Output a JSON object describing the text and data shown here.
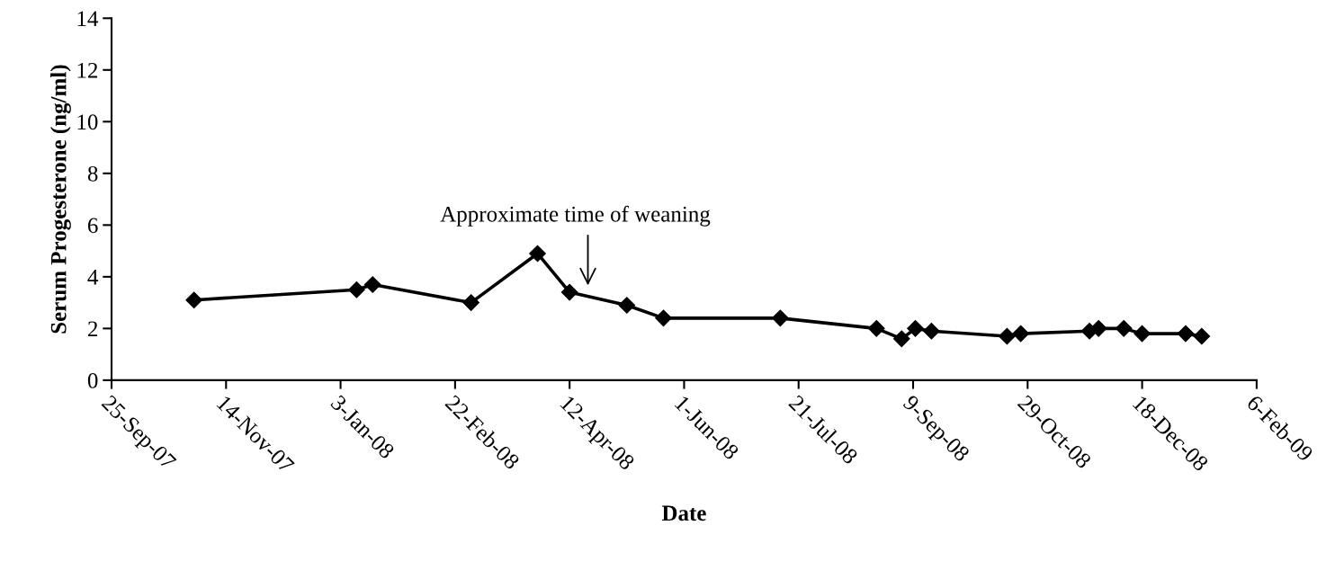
{
  "chart_data": {
    "type": "line",
    "xlabel": "Date",
    "ylabel": "Serum Progesterone (ng/ml)",
    "x": [
      "2007-10-31",
      "2008-01-10",
      "2008-01-17",
      "2008-02-29",
      "2008-03-29",
      "2008-04-12",
      "2008-05-07",
      "2008-05-23",
      "2008-07-13",
      "2008-08-24",
      "2008-09-04",
      "2008-09-10",
      "2008-09-17",
      "2008-10-20",
      "2008-10-26",
      "2008-11-25",
      "2008-11-29",
      "2008-12-10",
      "2008-12-18",
      "2009-01-06",
      "2009-01-13"
    ],
    "series": [
      {
        "color": "#000000",
        "values": [
          3.1,
          3.5,
          3.7,
          3.0,
          4.9,
          3.4,
          2.9,
          2.4,
          2.4,
          2.0,
          1.6,
          2.0,
          1.9,
          1.7,
          1.8,
          1.9,
          2.0,
          2.0,
          1.8,
          1.8,
          1.7
        ]
      }
    ],
    "marker": "diamond",
    "line_style": "solid",
    "grid": false,
    "xlim": [
      "2007-09-25",
      "2009-02-06"
    ],
    "xticks": [
      {
        "value": "2007-09-25",
        "label": "25-Sep-07"
      },
      {
        "value": "2007-11-14",
        "label": "14-Nov-07"
      },
      {
        "value": "2008-01-03",
        "label": "3-Jan-08"
      },
      {
        "value": "2008-02-22",
        "label": "22-Feb-08"
      },
      {
        "value": "2008-04-12",
        "label": "12-Apr-08"
      },
      {
        "value": "2008-06-01",
        "label": "1-Jun-08"
      },
      {
        "value": "2008-07-21",
        "label": "21-Jul-08"
      },
      {
        "value": "2008-09-09",
        "label": "9-Sep-08"
      },
      {
        "value": "2008-10-29",
        "label": "29-Oct-08"
      },
      {
        "value": "2008-12-18",
        "label": "18-Dec-08"
      },
      {
        "value": "2009-02-06",
        "label": "6-Feb-09"
      }
    ],
    "ylim": [
      0,
      14
    ],
    "yticks": [
      0,
      2,
      4,
      6,
      8,
      10,
      12,
      14
    ],
    "annotations": [
      "Approximate time of weaning"
    ]
  }
}
